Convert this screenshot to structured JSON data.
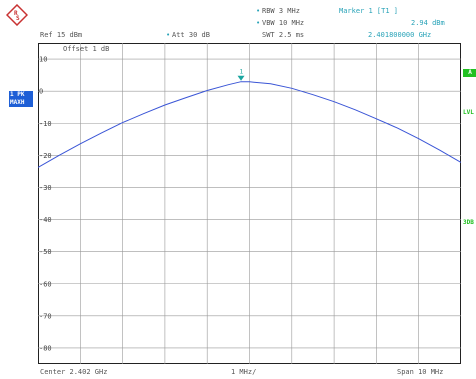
{
  "header": {
    "rbw_bullet": "•",
    "rbw": "RBW  3 MHz",
    "vbw_bullet": "•",
    "vbw": "VBW  10 MHz",
    "swt": "SWT  2.5 ms",
    "ref": "Ref  15 dBm",
    "att_bullet": "•",
    "att": "Att  30 dB",
    "marker_title": "Marker 1 [T1 ]",
    "marker_level": "2.94 dBm",
    "marker_freq": "2.401800000 GHz",
    "offset": "Offset  1 dB"
  },
  "side_left": {
    "trace_mode_1": "1 PK",
    "trace_mode_2": "MAXH"
  },
  "side_right": {
    "a_label": "A",
    "lvl_label": "LVL",
    "db_label": "3DB"
  },
  "footer": {
    "center": "Center 2.402 GHz",
    "div": "1 MHz/",
    "span": "Span 10 MHz"
  },
  "colors": {
    "trace": "#3a55d6",
    "marker": "#1aa6a0",
    "blue_text": "#29a3b8",
    "side_tag": "#1e5fd6",
    "green_tag": "#21c021"
  },
  "chart_data": {
    "type": "line",
    "x_ticks": [],
    "y_tick_labels": [
      "10",
      "0",
      "-10",
      "-20",
      "-30",
      "-40",
      "-50",
      "-60",
      "-70",
      "-80"
    ],
    "ylim": [
      -85,
      15
    ],
    "xlim": [
      2.397,
      2.407
    ],
    "grid": true,
    "series": [
      {
        "x": [
          2.397,
          2.3975,
          2.398,
          2.3985,
          2.399,
          2.3995,
          2.4,
          2.4005,
          2.401,
          2.4015,
          2.4018,
          2.402,
          2.4025,
          2.403,
          2.4035,
          2.404,
          2.4045,
          2.405,
          2.4055,
          2.406,
          2.4065,
          2.407
        ],
        "y": [
          -23.8,
          -20,
          -16.4,
          -13,
          -9.8,
          -7,
          -4.3,
          -2,
          0.2,
          2.0,
          2.94,
          2.9,
          2.3,
          0.9,
          -1.1,
          -3.3,
          -5.8,
          -8.6,
          -11.5,
          -14.8,
          -18.4,
          -22.2
        ]
      }
    ],
    "marker": {
      "name": "1",
      "x": 2.4018,
      "y": 2.94
    }
  }
}
